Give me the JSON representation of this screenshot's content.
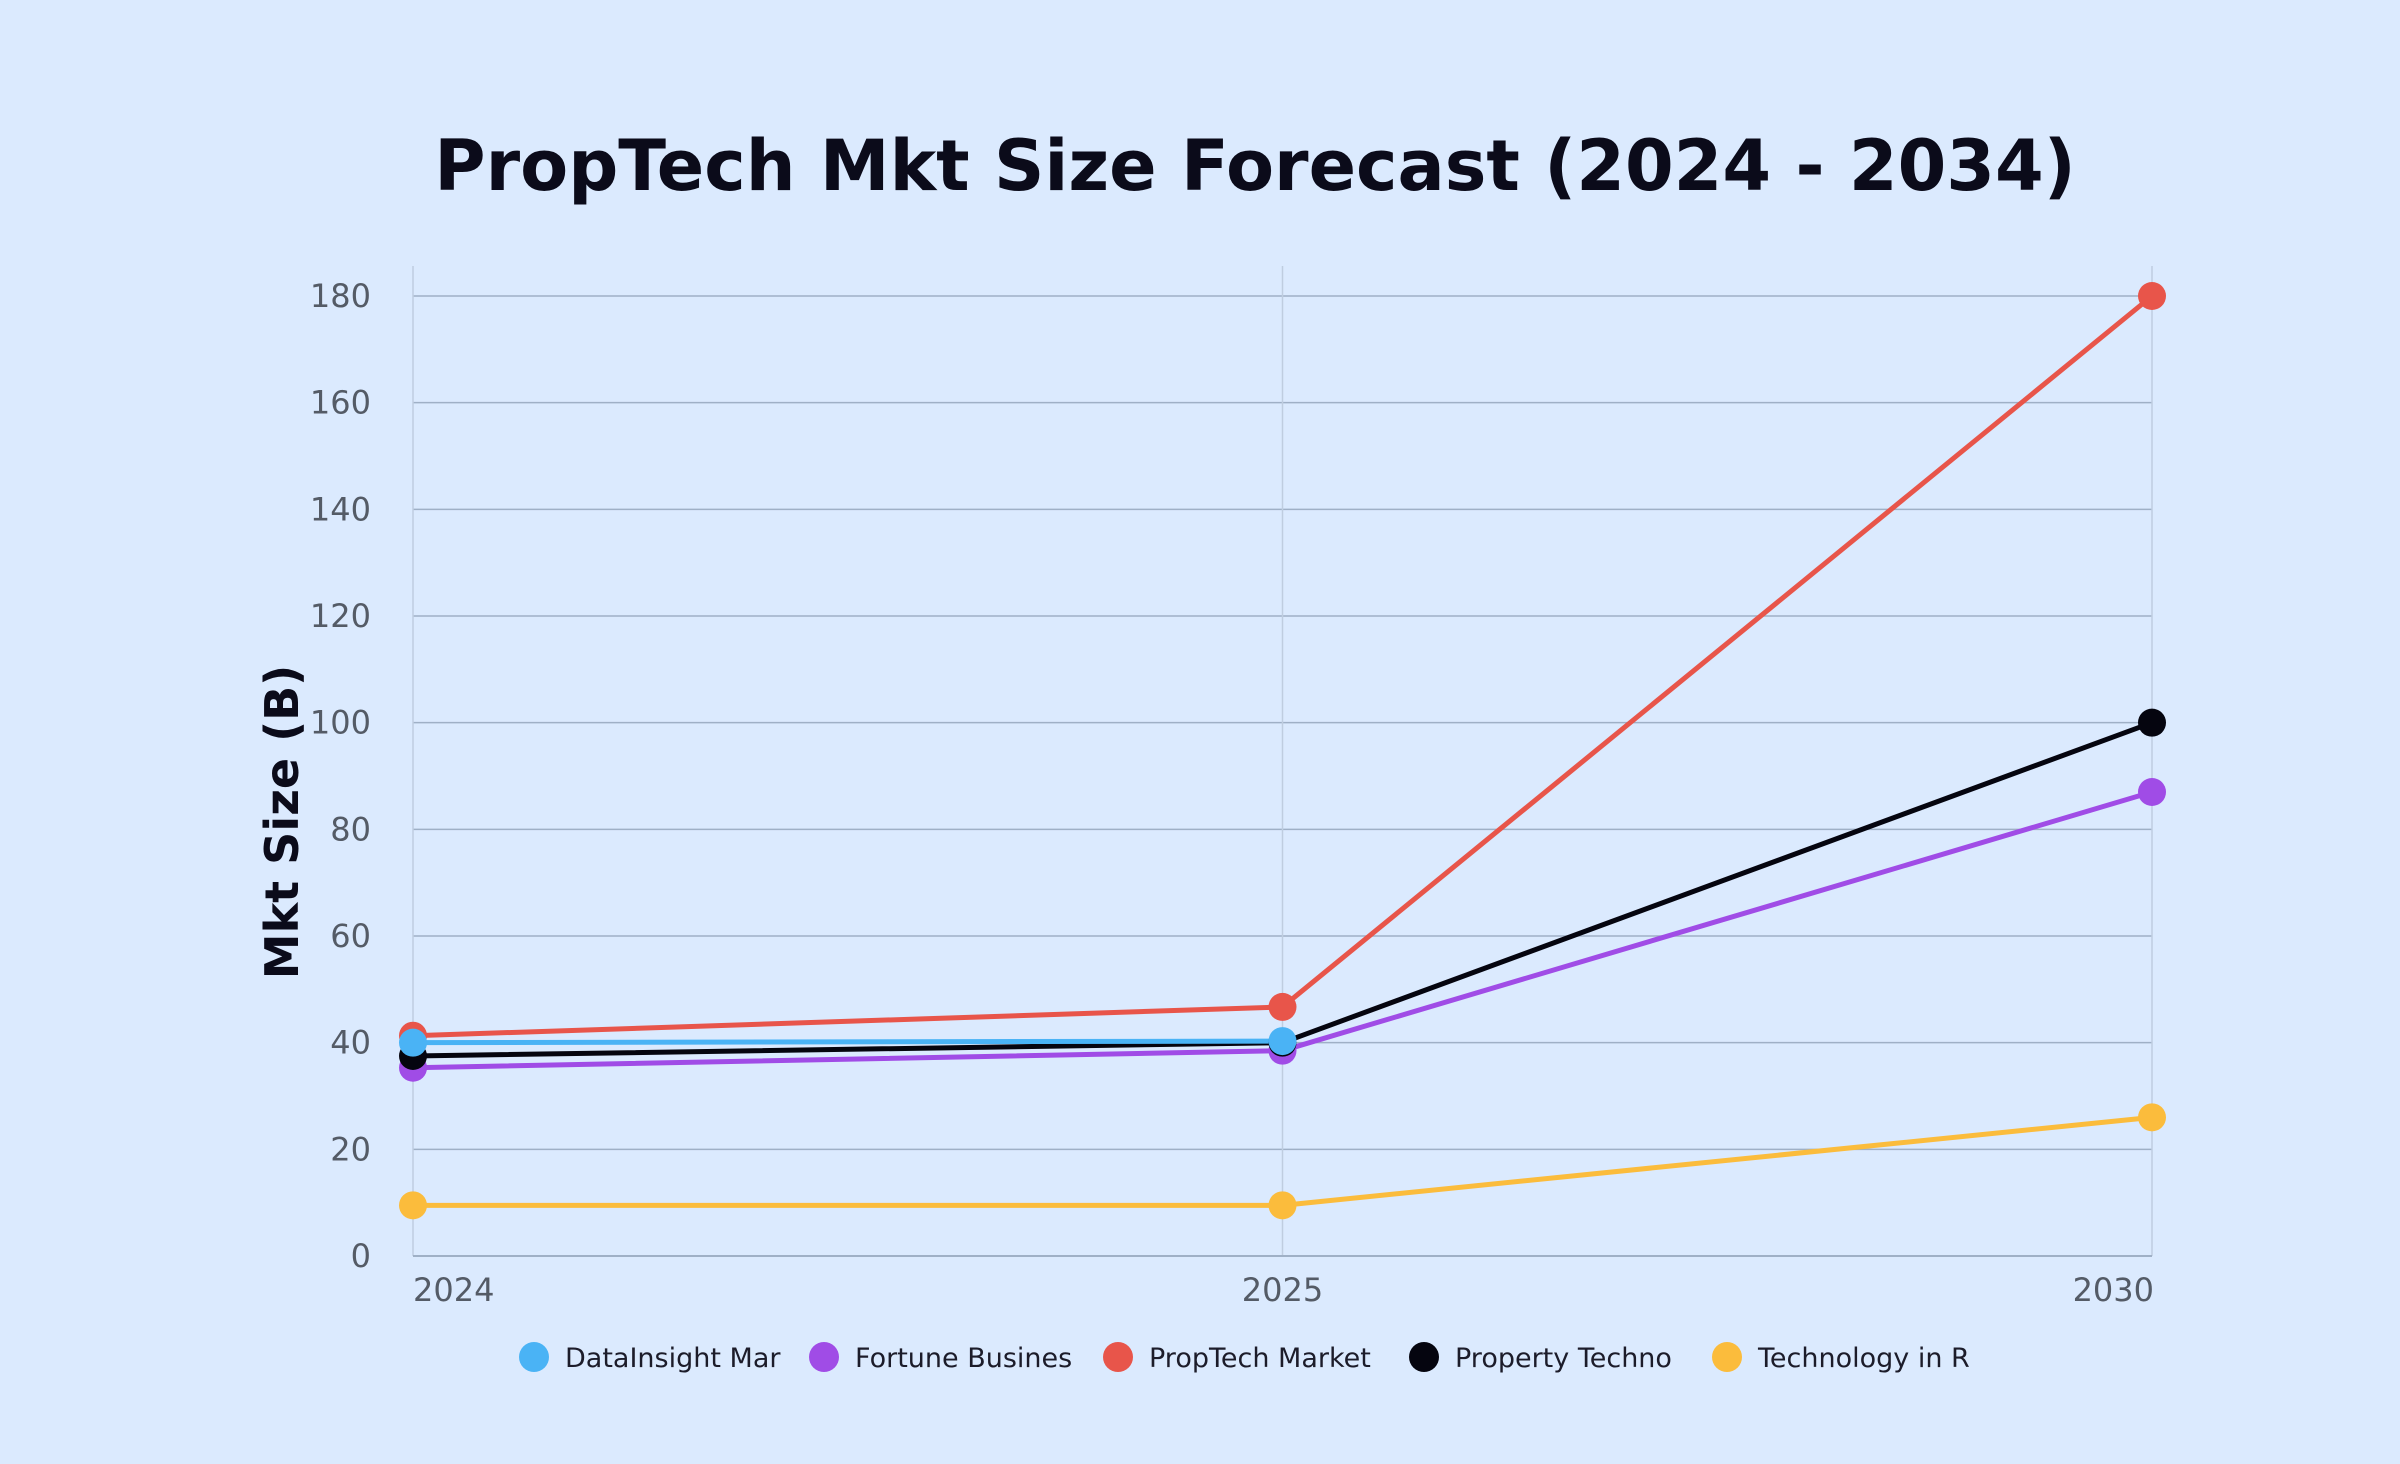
{
  "chart_data": {
    "type": "line",
    "title": "PropTech Mkt Size Forecast (2024 - 2034)",
    "xlabel": "",
    "ylabel": "Mkt Size (B)",
    "categories": [
      "2024",
      "2025",
      "2030"
    ],
    "ylim": [
      0,
      180
    ],
    "yticks": [
      0,
      20,
      40,
      60,
      80,
      100,
      120,
      140,
      160,
      180
    ],
    "grid": true,
    "legend_position": "bottom",
    "series": [
      {
        "name": "Fortune Busines",
        "color": "#a04ce6",
        "values": [
          35.3,
          38.5,
          87
        ]
      },
      {
        "name": "Property Techno",
        "color": "#05050f",
        "values": [
          37.5,
          40,
          100
        ]
      },
      {
        "name": "PropTech Market",
        "color": "#e8554a",
        "values": [
          41.3,
          46.7,
          180
        ]
      },
      {
        "name": "DataInsight Mar",
        "color": "#4ab3f5",
        "values": [
          40,
          40.3,
          null
        ]
      },
      {
        "name": "Technology in R",
        "color": "#fbbc3c",
        "values": [
          9.5,
          9.5,
          26
        ]
      }
    ],
    "legend_order": [
      "DataInsight Mar",
      "Fortune Busines",
      "PropTech Market",
      "Property Techno",
      "Technology in R"
    ]
  }
}
